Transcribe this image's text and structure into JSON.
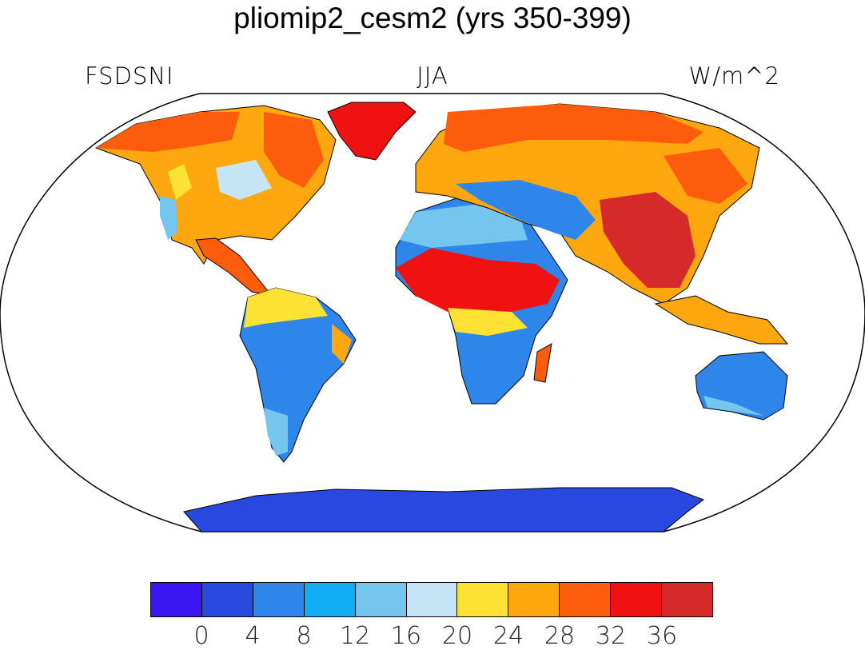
{
  "title": "pliomip2_cesm2 (yrs 350-399)",
  "left_label": "FSDSNI",
  "center_label": "JJA",
  "right_label": "W/m^2",
  "colorbar": {
    "colors": [
      "#3a16f0",
      "#2948e0",
      "#2f86ea",
      "#12aef5",
      "#75c6ee",
      "#c5e5f6",
      "#fde233",
      "#fea70e",
      "#fd5c0b",
      "#f01111",
      "#d62a2a"
    ],
    "ticks": [
      "0",
      "4",
      "8",
      "12",
      "16",
      "20",
      "24",
      "28",
      "32",
      "36"
    ]
  }
}
